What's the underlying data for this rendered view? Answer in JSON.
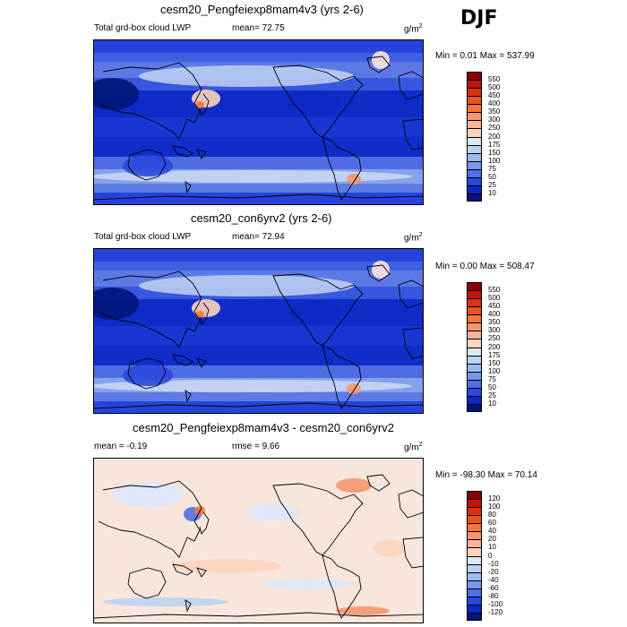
{
  "season": "DJF",
  "panels": [
    {
      "title": "cesm20_Pengfeiexp8mam4v3 (yrs 2-6)",
      "variable": "Total grd-box cloud LWP",
      "stat": "mean=  72.75",
      "stat2": "",
      "units": "g/m",
      "units_exp": "2",
      "minmax": "Min =   0.01 Max = 537.99",
      "kind": "field",
      "colorbar_labels": [
        "550",
        "500",
        "450",
        "400",
        "350",
        "300",
        "250",
        "200",
        "175",
        "150",
        "100",
        "75",
        "50",
        "25",
        "10"
      ],
      "colorbar_colors": [
        "#8b0000",
        "#c0140f",
        "#dc3214",
        "#e8551e",
        "#f0783c",
        "#f5966e",
        "#f8b496",
        "#fcd4be",
        "#dce8f8",
        "#bcd2f2",
        "#9cbaee",
        "#7896ea",
        "#5070e6",
        "#2a48de",
        "#0c28c4",
        "#00157a"
      ]
    },
    {
      "title": "cesm20_con6yrv2 (yrs 2-6)",
      "variable": "Total grd-box cloud LWP",
      "stat": "mean=  72.94",
      "stat2": "",
      "units": "g/m",
      "units_exp": "2",
      "minmax": "Min =   0.00 Max = 508.47",
      "kind": "field",
      "colorbar_labels": [
        "550",
        "500",
        "450",
        "400",
        "350",
        "300",
        "250",
        "200",
        "175",
        "150",
        "100",
        "75",
        "50",
        "25",
        "10"
      ],
      "colorbar_colors": [
        "#8b0000",
        "#c0140f",
        "#dc3214",
        "#e8551e",
        "#f0783c",
        "#f5966e",
        "#f8b496",
        "#fcd4be",
        "#dce8f8",
        "#bcd2f2",
        "#9cbaee",
        "#7896ea",
        "#5070e6",
        "#2a48de",
        "#0c28c4",
        "#00157a"
      ]
    },
    {
      "title": "cesm20_Pengfeiexp8mam4v3 - cesm20_con6yrv2",
      "variable": "",
      "stat": "mean =  -0.19",
      "stat2": "rmse =   9.66",
      "units": "g/m",
      "units_exp": "2",
      "minmax": "Min = -98.30 Max =  70.14",
      "kind": "diff",
      "colorbar_labels": [
        "120",
        "100",
        "80",
        "60",
        "40",
        "20",
        "10",
        "0",
        "-10",
        "-20",
        "-40",
        "-60",
        "-80",
        "-100",
        "-120"
      ],
      "colorbar_colors": [
        "#8b0000",
        "#c0140f",
        "#dc3214",
        "#e8551e",
        "#f0783c",
        "#f5966e",
        "#f8b496",
        "#fcd4be",
        "#dce8f8",
        "#bcd2f2",
        "#9cbaee",
        "#7896ea",
        "#5070e6",
        "#2a48de",
        "#0c28c4",
        "#00157a"
      ]
    }
  ]
}
